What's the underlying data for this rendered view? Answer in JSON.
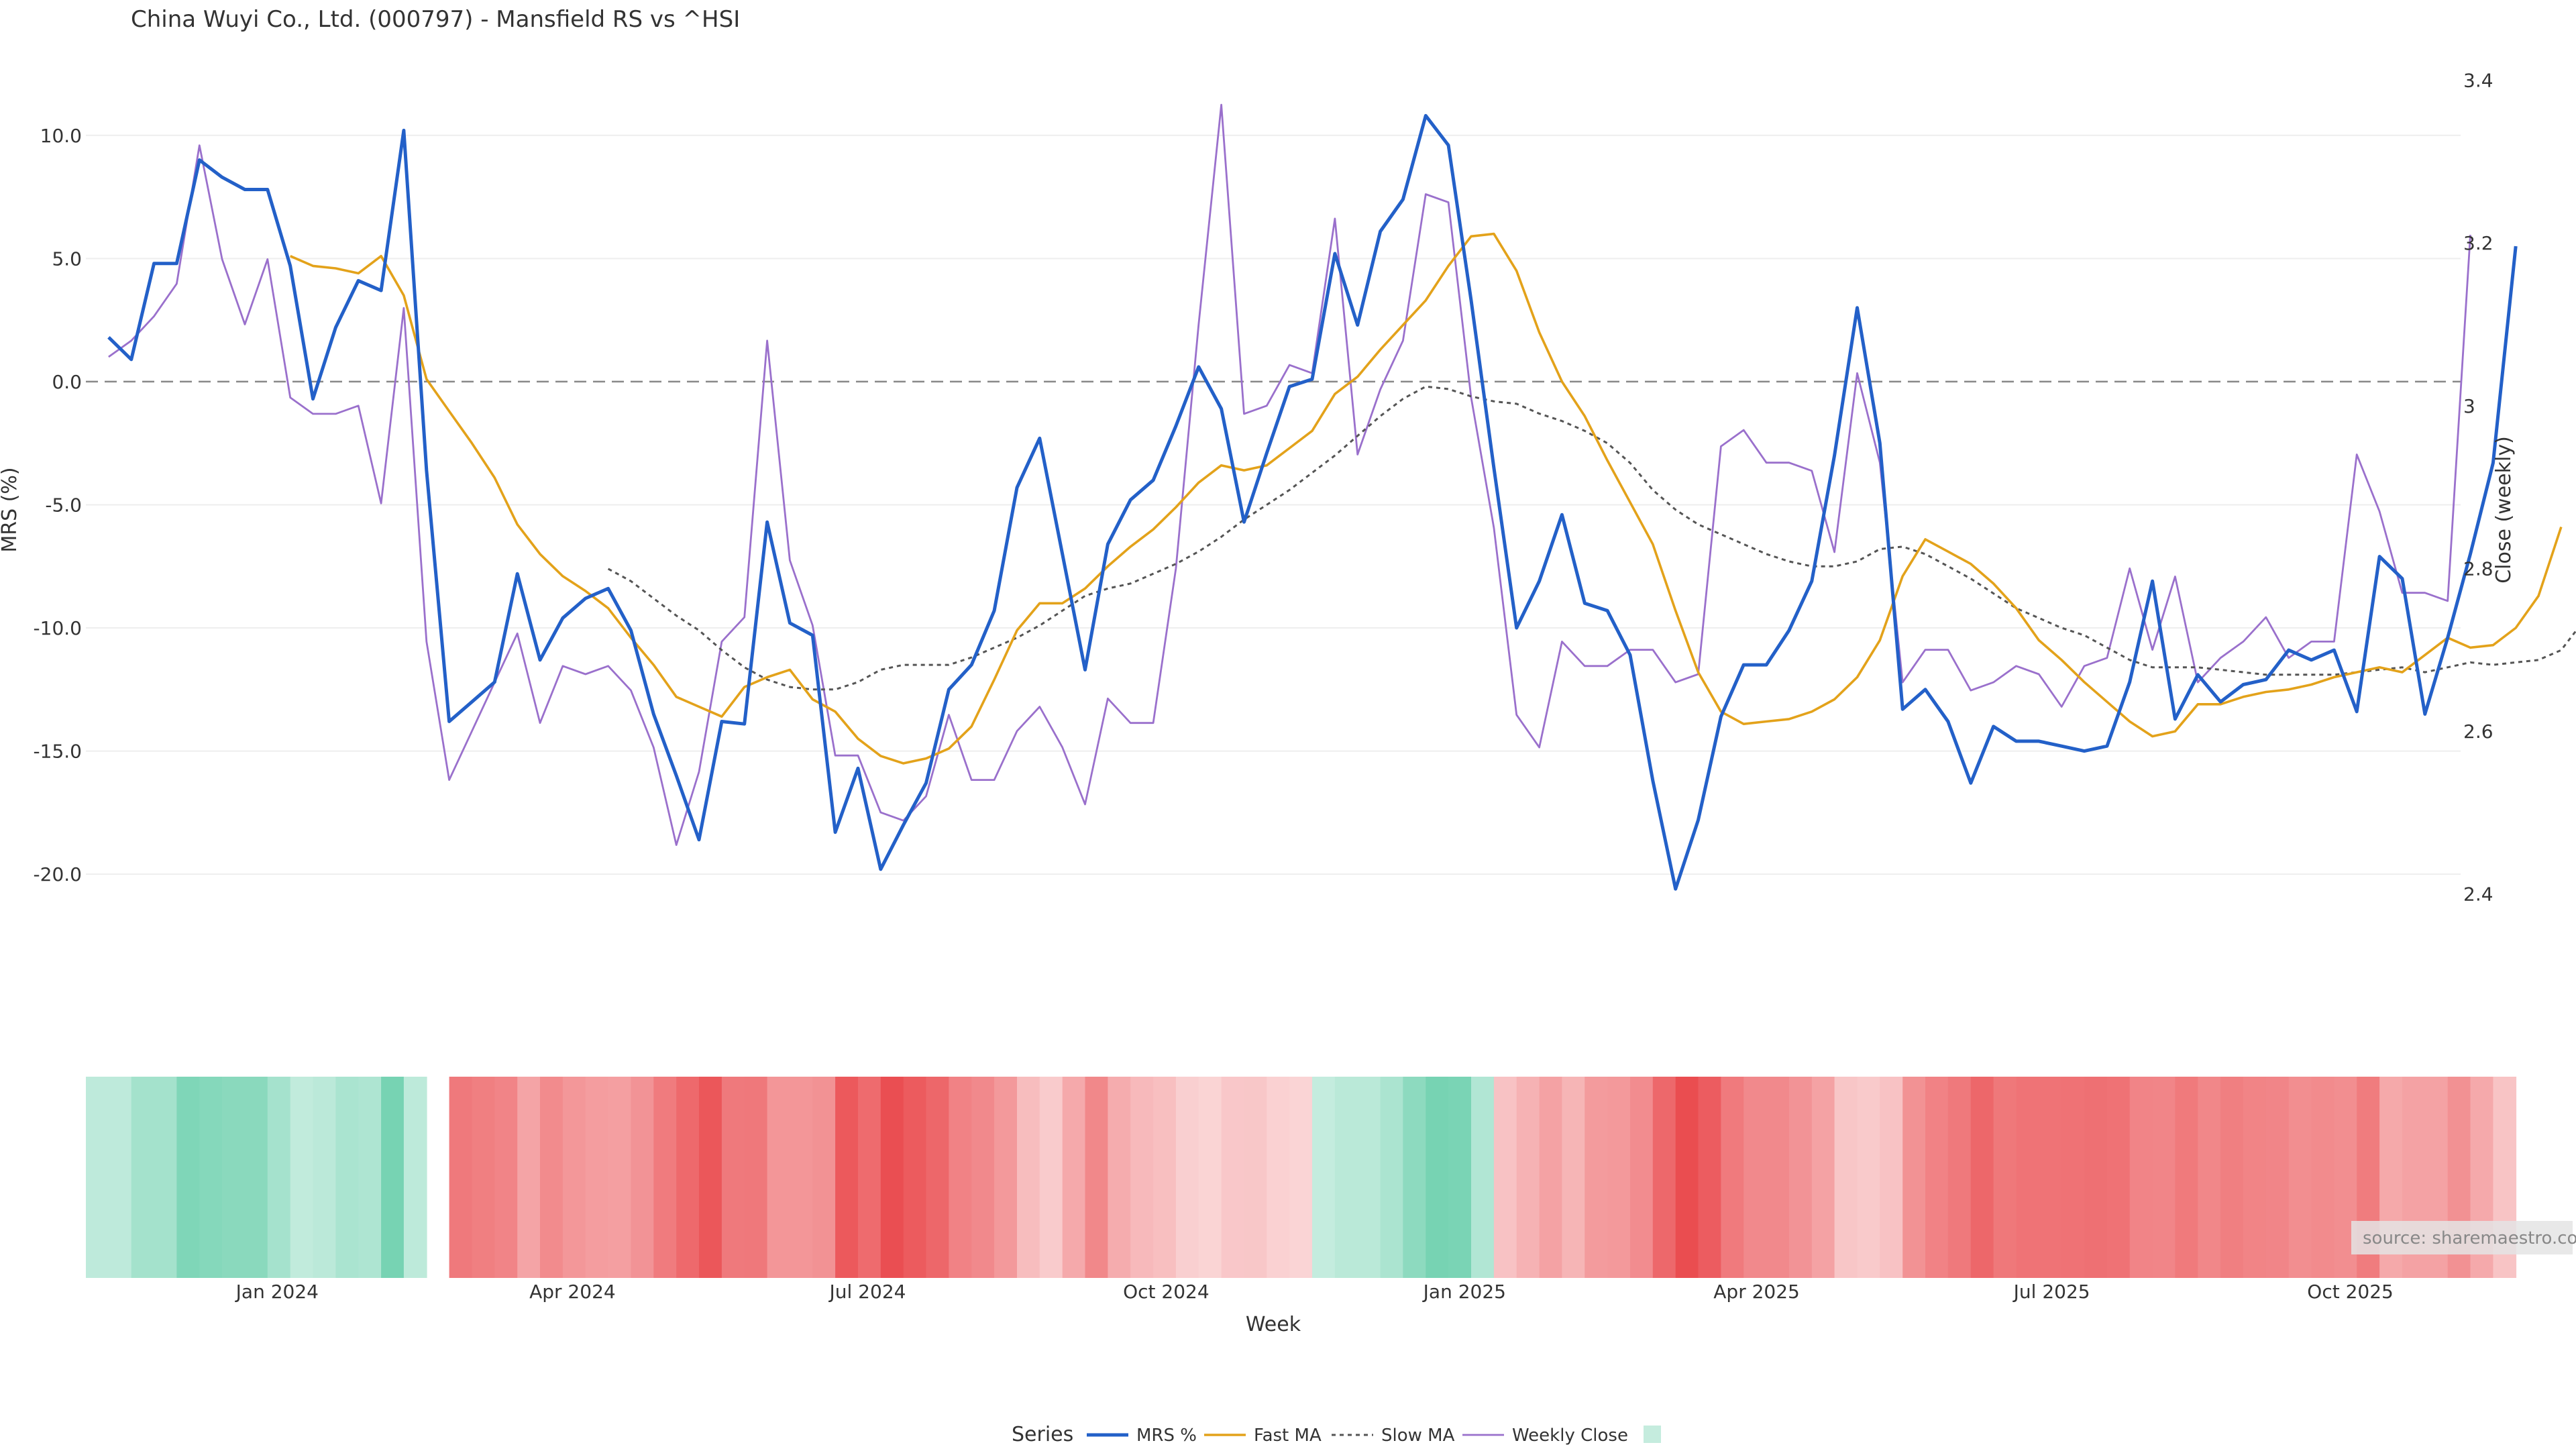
{
  "title": "China Wuyi Co., Ltd. (000797) - Mansfield RS vs ^HSI",
  "source": "source: sharemaestro.com",
  "chart_data": {
    "type": "line",
    "title": "China Wuyi Co., Ltd. (000797) - Mansfield RS vs ^HSI",
    "xlabel": "Week",
    "ylabel": "MRS (%)",
    "y2label": "Close (weekly)",
    "ylim": [
      -24,
      12.5
    ],
    "y2lim": [
      2.303,
      3.408
    ],
    "y_ticks": [
      10.0,
      5.0,
      0.0,
      -5.0,
      -10.0,
      -15.0,
      -20.0
    ],
    "y_tick_labels": [
      "10.0",
      "5.0",
      "0.0",
      "-5.0",
      "-10.0",
      "-15.0",
      "-20.0"
    ],
    "y2_ticks": [
      3.4,
      3.2,
      3.0,
      2.8,
      2.6,
      2.4
    ],
    "y2_tick_labels": [
      "3.4",
      "3.2",
      "3",
      "2.8",
      "2.6",
      "2.4"
    ],
    "x_range": [
      "2023-11-03",
      "2025-11-04"
    ],
    "x_ticks": [
      "2024-01-01",
      "2024-04-01",
      "2024-07-01",
      "2024-10-01",
      "2025-01-01",
      "2025-04-01",
      "2025-07-01",
      "2025-10-01"
    ],
    "x_tick_labels": [
      "Jan 2024",
      "Apr 2024",
      "Jul 2024",
      "Oct 2024",
      "Jan 2025",
      "Apr 2025",
      "Jul 2025",
      "Oct 2025"
    ],
    "zero_line": 0,
    "grid": true,
    "legend_title": "Series",
    "legend_position": "bottom-center",
    "legend": [
      "MRS %",
      "Fast MA",
      "Slow MA",
      "Weekly Close",
      ""
    ],
    "colors": {
      "mrs": "#2360c8",
      "fast": "#e3a21a",
      "slow": "#555555",
      "close": "#9a70cc",
      "zero": "#888888",
      "band_pos": "#3cc092",
      "band_neg": "#e8393d"
    },
    "series": [
      {
        "name": "MRS %",
        "axis": "left",
        "start": "2023-11-10",
        "values": [
          1.8,
          0.9,
          4.8,
          4.8,
          9.0,
          8.3,
          7.8,
          7.8,
          4.7,
          -0.7,
          2.2,
          4.1,
          3.7,
          10.2,
          -3.6,
          -13.8,
          -13.0,
          -12.2,
          -7.8,
          -11.3,
          -9.6,
          -8.8,
          -8.4,
          -10.1,
          -13.5,
          -16.0,
          -18.6,
          -13.8,
          -13.9,
          -5.7,
          -9.8,
          -10.3,
          -18.3,
          -15.7,
          -19.8,
          -18.0,
          -16.3,
          -12.5,
          -11.5,
          -9.3,
          -4.3,
          -2.3,
          -7.0,
          -11.7,
          -6.6,
          -4.8,
          -4.0,
          -1.8,
          0.6,
          -1.1,
          -5.7,
          -2.9,
          -0.2,
          0.1,
          5.2,
          2.3,
          6.1,
          7.4,
          10.8,
          9.6,
          3.3,
          -3.5,
          -10.0,
          -8.1,
          -5.4,
          -9.0,
          -9.3,
          -11.1,
          -16.2,
          -20.6,
          -17.8,
          -13.6,
          -11.5,
          -11.5,
          -10.1,
          -8.1,
          -3.0,
          3.0,
          -2.5,
          -13.3,
          -12.5,
          -13.8,
          -16.3,
          -14.0,
          -14.6,
          -14.6,
          -14.8,
          -15.0,
          -14.8,
          -12.2,
          -8.1,
          -13.7,
          -11.9,
          -13.0,
          -12.3,
          -12.1,
          -10.9,
          -11.3,
          -10.9,
          -13.4,
          -7.1,
          -8.0,
          -13.5,
          -10.4,
          -7.0,
          -3.3,
          5.5
        ]
      },
      {
        "name": "Fast MA",
        "axis": "left",
        "start": "2024-01-05",
        "values": [
          5.1,
          4.7,
          4.6,
          4.4,
          5.1,
          3.5,
          0.1,
          -1.2,
          -2.5,
          -3.9,
          -5.8,
          -7.0,
          -7.9,
          -8.5,
          -9.2,
          -10.4,
          -11.5,
          -12.8,
          -13.2,
          -13.6,
          -12.4,
          -12.0,
          -11.7,
          -12.9,
          -13.4,
          -14.5,
          -15.2,
          -15.5,
          -15.3,
          -14.9,
          -14.0,
          -12.1,
          -10.1,
          -9.0,
          -9.0,
          -8.4,
          -7.5,
          -6.7,
          -6.0,
          -5.1,
          -4.1,
          -3.4,
          -3.6,
          -3.4,
          -2.7,
          -2.0,
          -0.5,
          0.2,
          1.3,
          2.3,
          3.3,
          4.7,
          5.9,
          6.0,
          4.5,
          2.0,
          0.0,
          -1.4,
          -3.2,
          -4.9,
          -6.6,
          -9.3,
          -11.8,
          -13.4,
          -13.9,
          -13.8,
          -13.7,
          -13.4,
          -12.9,
          -12.0,
          -10.5,
          -7.9,
          -6.4,
          -6.9,
          -7.4,
          -8.2,
          -9.2,
          -10.5,
          -11.3,
          -12.2,
          -13.0,
          -13.8,
          -14.4,
          -14.2,
          -13.1,
          -13.1,
          -12.8,
          -12.6,
          -12.5,
          -12.3,
          -12.0,
          -11.8,
          -11.6,
          -11.8,
          -11.1,
          -10.4,
          -10.8,
          -10.7,
          -10.0,
          -8.7,
          -5.9
        ]
      },
      {
        "name": "Slow MA",
        "axis": "left",
        "start": "2024-04-12",
        "values": [
          -7.6,
          -8.1,
          -8.8,
          -9.5,
          -10.1,
          -10.9,
          -11.6,
          -12.1,
          -12.4,
          -12.5,
          -12.5,
          -12.2,
          -11.7,
          -11.5,
          -11.5,
          -11.5,
          -11.2,
          -10.8,
          -10.4,
          -9.9,
          -9.3,
          -8.7,
          -8.4,
          -8.2,
          -7.8,
          -7.4,
          -6.9,
          -6.3,
          -5.6,
          -5.0,
          -4.4,
          -3.7,
          -3.0,
          -2.2,
          -1.4,
          -0.7,
          -0.2,
          -0.3,
          -0.6,
          -0.8,
          -0.9,
          -1.3,
          -1.6,
          -2.0,
          -2.5,
          -3.3,
          -4.4,
          -5.2,
          -5.8,
          -6.2,
          -6.6,
          -7.0,
          -7.3,
          -7.5,
          -7.5,
          -7.3,
          -6.8,
          -6.7,
          -7.0,
          -7.5,
          -8.0,
          -8.6,
          -9.2,
          -9.6,
          -10.0,
          -10.3,
          -10.8,
          -11.3,
          -11.6,
          -11.6,
          -11.6,
          -11.7,
          -11.8,
          -11.9,
          -11.9,
          -11.9,
          -11.9,
          -11.8,
          -11.7,
          -11.6,
          -11.8,
          -11.6,
          -11.4,
          -11.5,
          -11.4,
          -11.3,
          -10.9,
          -9.7
        ]
      },
      {
        "name": "Weekly Close",
        "axis": "right",
        "start": "2023-11-10",
        "values": [
          3.06,
          3.08,
          3.11,
          3.15,
          3.32,
          3.18,
          3.1,
          3.18,
          3.01,
          2.99,
          2.99,
          3.0,
          2.88,
          3.12,
          2.71,
          2.54,
          2.6,
          2.66,
          2.72,
          2.61,
          2.68,
          2.67,
          2.68,
          2.65,
          2.58,
          2.46,
          2.55,
          2.71,
          2.74,
          3.08,
          2.81,
          2.73,
          2.57,
          2.57,
          2.5,
          2.49,
          2.52,
          2.62,
          2.54,
          2.54,
          2.6,
          2.63,
          2.58,
          2.51,
          2.64,
          2.61,
          2.61,
          2.8,
          3.1,
          3.37,
          2.99,
          3.0,
          3.05,
          3.04,
          3.23,
          2.94,
          3.02,
          3.08,
          3.26,
          3.25,
          3.01,
          2.85,
          2.62,
          2.58,
          2.71,
          2.68,
          2.68,
          2.7,
          2.7,
          2.66,
          2.67,
          2.95,
          2.97,
          2.93,
          2.93,
          2.92,
          2.82,
          3.04,
          2.93,
          2.66,
          2.7,
          2.7,
          2.65,
          2.66,
          2.68,
          2.67,
          2.63,
          2.68,
          2.69,
          2.8,
          2.7,
          2.79,
          2.66,
          2.69,
          2.71,
          2.74,
          2.69,
          2.71,
          2.71,
          2.94,
          2.87,
          2.77,
          2.77,
          2.76,
          3.21
        ]
      }
    ],
    "band": {
      "start": "2023-11-03",
      "comment": "weekly relative-strength colour band; positive = green, negative = red, null = gap",
      "values": [
        1.8,
        1.8,
        4.8,
        4.8,
        9.0,
        8.3,
        7.8,
        7.8,
        4.7,
        1.5,
        2.2,
        4.1,
        3.7,
        10.2,
        2.0,
        null,
        -13.8,
        -13.0,
        -12.2,
        -7.8,
        -11.3,
        -9.6,
        -8.8,
        -8.4,
        -10.1,
        -13.5,
        -16.0,
        -18.6,
        -13.8,
        -13.9,
        -9.7,
        -9.8,
        -10.3,
        -18.3,
        -15.7,
        -19.8,
        -18.0,
        -16.3,
        -12.5,
        -11.5,
        -9.3,
        -4.3,
        -2.3,
        -7.0,
        -11.7,
        -6.6,
        -4.8,
        -4.0,
        -1.8,
        -1.1,
        -2.8,
        -2.9,
        -1.5,
        -1.0,
        1.2,
        2.3,
        2.3,
        4.0,
        7.4,
        10.8,
        9.6,
        3.3,
        -3.5,
        -5.8,
        -8.1,
        -5.4,
        -9.0,
        -9.3,
        -11.1,
        -16.2,
        -20.6,
        -17.8,
        -13.6,
        -11.5,
        -11.5,
        -10.1,
        -8.1,
        -3.0,
        -2.5,
        -3.5,
        -10.3,
        -12.5,
        -13.8,
        -16.3,
        -14.0,
        -14.6,
        -14.6,
        -14.8,
        -15.0,
        -14.8,
        -12.2,
        -12.1,
        -13.7,
        -11.9,
        -13.0,
        -12.3,
        -12.1,
        -10.9,
        -11.3,
        -10.9,
        -13.4,
        -7.1,
        -8.0,
        -8.0,
        -10.4,
        -7.0,
        -3.3
      ]
    }
  }
}
